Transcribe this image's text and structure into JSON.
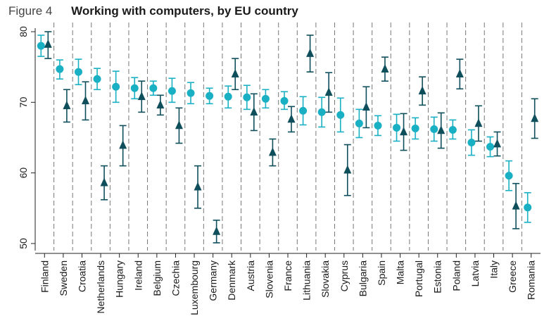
{
  "figure": {
    "label": "Figure 4",
    "title": "Working with computers, by EU country"
  },
  "colors": {
    "circle_series": "#1ab0c4",
    "triangle_series": "#0f4f5c",
    "gridline": "#777777",
    "axis": "#222222"
  },
  "chart_data": {
    "type": "scatter",
    "title": "Working with computers, by EU country",
    "xlabel": "",
    "ylabel": "",
    "ylim": [
      49,
      80.5
    ],
    "yticks": [
      50,
      60,
      70,
      80
    ],
    "grid": "vertical dashed between countries",
    "legend": "none",
    "categories": [
      "Finland",
      "Sweden",
      "Croatia",
      "Netherlands",
      "Hungary",
      "Ireland",
      "Belgium",
      "Czechia",
      "Luxembourg",
      "Germany",
      "Denmark",
      "Austria",
      "Slovenia",
      "France",
      "Lithuania",
      "Slovakia",
      "Cyprus",
      "Bulgaria",
      "Spain",
      "Malta",
      "Portugal",
      "Estonia",
      "Poland",
      "Latvia",
      "Italy",
      "Greece",
      "Romania"
    ],
    "series": [
      {
        "marker": "circle",
        "values": [
          78.0,
          74.7,
          74.3,
          73.3,
          72.2,
          72.0,
          72.0,
          71.6,
          71.3,
          70.9,
          70.8,
          70.7,
          70.5,
          70.2,
          68.8,
          68.6,
          68.2,
          67.0,
          66.7,
          66.4,
          66.3,
          66.2,
          66.1,
          64.3,
          63.7,
          59.6,
          55.1
        ],
        "lower": [
          76.5,
          73.3,
          72.5,
          71.8,
          70.0,
          70.5,
          71.0,
          70.0,
          69.8,
          69.8,
          69.2,
          69.0,
          69.2,
          69.0,
          66.8,
          66.5,
          65.8,
          65.0,
          65.3,
          64.5,
          64.8,
          64.5,
          64.8,
          62.5,
          62.3,
          57.5,
          53.0
        ],
        "upper": [
          79.5,
          76.0,
          76.1,
          74.8,
          74.4,
          73.5,
          73.0,
          73.4,
          72.8,
          72.0,
          72.3,
          72.4,
          71.8,
          71.5,
          70.8,
          70.7,
          70.6,
          69.0,
          68.1,
          68.3,
          67.8,
          67.9,
          67.5,
          66.1,
          65.1,
          61.7,
          57.2
        ]
      },
      {
        "marker": "triangle",
        "values": [
          78.2,
          69.5,
          70.2,
          58.6,
          63.9,
          70.8,
          69.6,
          66.7,
          58.0,
          51.7,
          74.0,
          68.6,
          62.9,
          67.6,
          76.9,
          71.4,
          60.4,
          69.3,
          74.7,
          65.8,
          71.6,
          66.0,
          74.0,
          67.0,
          64.1,
          55.3,
          67.7
        ],
        "lower": [
          76.2,
          67.2,
          67.5,
          56.2,
          61.0,
          68.6,
          68.2,
          64.2,
          55.0,
          50.1,
          71.8,
          66.0,
          61.0,
          65.8,
          74.3,
          68.6,
          56.8,
          66.4,
          73.0,
          63.2,
          69.6,
          63.5,
          71.9,
          64.5,
          62.4,
          52.1,
          64.9
        ],
        "upper": [
          80.0,
          71.8,
          72.9,
          61.0,
          66.7,
          73.0,
          71.0,
          69.2,
          61.0,
          53.3,
          76.2,
          71.2,
          64.8,
          69.4,
          79.5,
          74.2,
          64.0,
          72.2,
          76.4,
          68.4,
          73.6,
          68.5,
          76.1,
          69.5,
          65.8,
          58.5,
          70.5
        ]
      }
    ]
  }
}
